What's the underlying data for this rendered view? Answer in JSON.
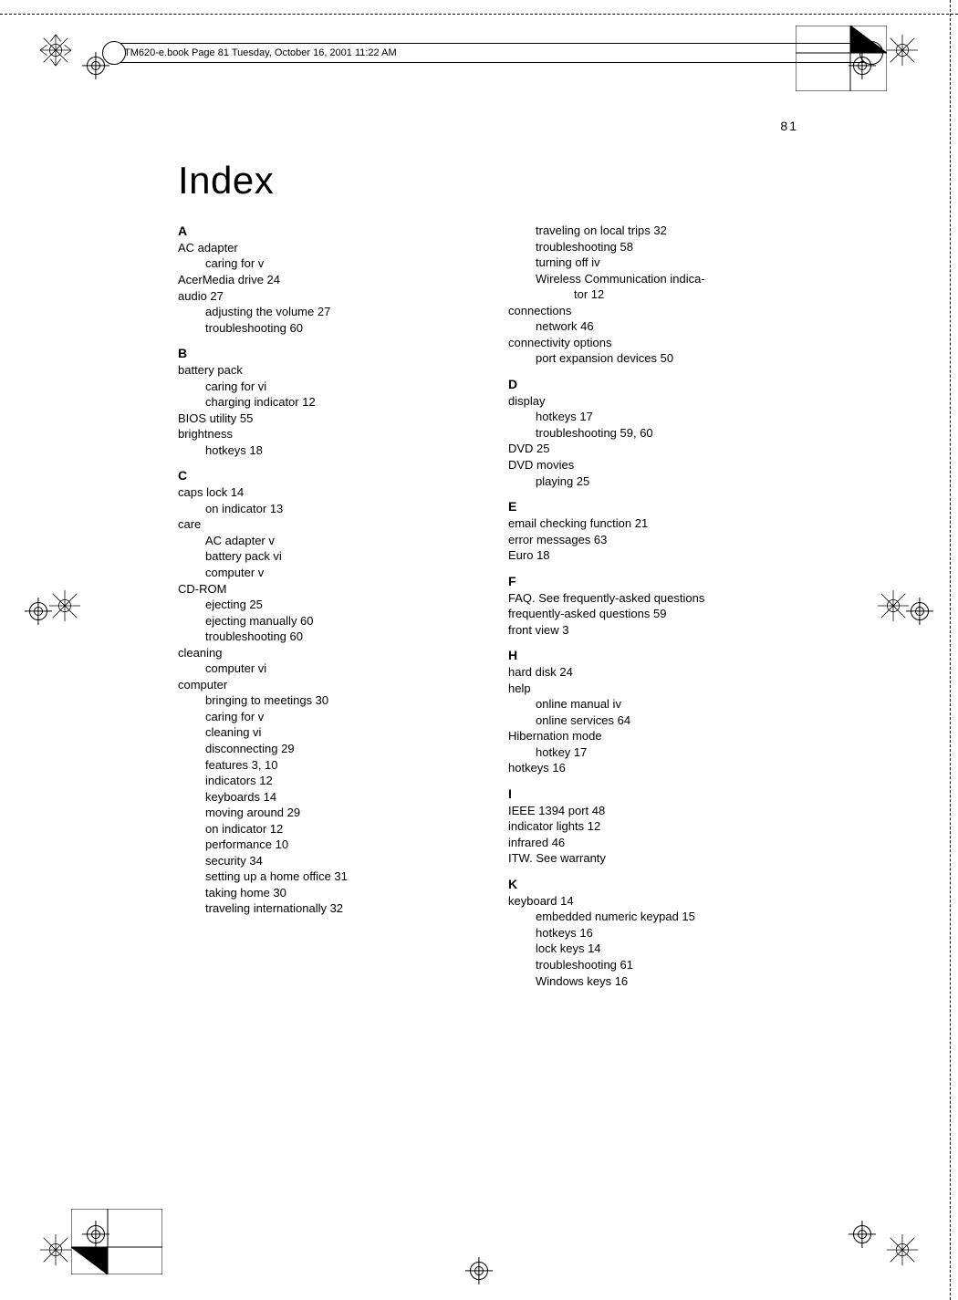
{
  "header": {
    "text": "TM620-e.book  Page 81  Tuesday, October 16, 2001  11:22 AM"
  },
  "page_number": "81",
  "title": "Index",
  "left_column": [
    {
      "type": "letter",
      "text": "A"
    },
    {
      "type": "entry",
      "text": "AC adapter"
    },
    {
      "type": "sub",
      "text": "caring for    v"
    },
    {
      "type": "entry",
      "text": "AcerMedia drive    24"
    },
    {
      "type": "entry",
      "text": "audio    27"
    },
    {
      "type": "sub",
      "text": "adjusting the volume    27"
    },
    {
      "type": "sub",
      "text": "troubleshooting    60"
    },
    {
      "type": "letter",
      "text": "B"
    },
    {
      "type": "entry",
      "text": "battery pack"
    },
    {
      "type": "sub",
      "text": "caring for    vi"
    },
    {
      "type": "sub",
      "text": "charging indicator    12"
    },
    {
      "type": "entry",
      "text": "BIOS utility    55"
    },
    {
      "type": "entry",
      "text": "brightness"
    },
    {
      "type": "sub",
      "text": "hotkeys    18"
    },
    {
      "type": "letter",
      "text": "C"
    },
    {
      "type": "entry",
      "text": "caps lock    14"
    },
    {
      "type": "sub",
      "text": "on indicator    13"
    },
    {
      "type": "entry",
      "text": "care"
    },
    {
      "type": "sub",
      "text": "AC adapter    v"
    },
    {
      "type": "sub",
      "text": "battery pack    vi"
    },
    {
      "type": "sub",
      "text": "computer    v"
    },
    {
      "type": "entry",
      "text": "CD-ROM"
    },
    {
      "type": "sub",
      "text": "ejecting    25"
    },
    {
      "type": "sub",
      "text": "ejecting manually    60"
    },
    {
      "type": "sub",
      "text": "troubleshooting    60"
    },
    {
      "type": "entry",
      "text": "cleaning"
    },
    {
      "type": "sub",
      "text": "computer    vi"
    },
    {
      "type": "entry",
      "text": "computer"
    },
    {
      "type": "sub",
      "text": "bringing to meetings    30"
    },
    {
      "type": "sub",
      "text": "caring for    v"
    },
    {
      "type": "sub",
      "text": "cleaning    vi"
    },
    {
      "type": "sub",
      "text": "disconnecting    29"
    },
    {
      "type": "sub",
      "text": "features    3,    10"
    },
    {
      "type": "sub",
      "text": "indicators    12"
    },
    {
      "type": "sub",
      "text": "keyboards    14"
    },
    {
      "type": "sub",
      "text": "moving around    29"
    },
    {
      "type": "sub",
      "text": "on indicator    12"
    },
    {
      "type": "sub",
      "text": "performance    10"
    },
    {
      "type": "sub",
      "text": "security    34"
    },
    {
      "type": "sub",
      "text": "setting up a home office    31"
    },
    {
      "type": "sub",
      "text": "taking home    30"
    },
    {
      "type": "sub",
      "text": "traveling internationally    32"
    }
  ],
  "right_column": [
    {
      "type": "sub",
      "text": "traveling on local trips    32"
    },
    {
      "type": "sub",
      "text": "troubleshooting    58"
    },
    {
      "type": "sub",
      "text": "turning off    iv"
    },
    {
      "type": "sub",
      "text": "Wireless  Communication  indica-"
    },
    {
      "type": "sub2",
      "text": "tor    12"
    },
    {
      "type": "entry",
      "text": "connections"
    },
    {
      "type": "sub",
      "text": "network    46"
    },
    {
      "type": "entry",
      "text": "connectivity options"
    },
    {
      "type": "sub",
      "text": "port expansion devices    50"
    },
    {
      "type": "letter",
      "text": "D"
    },
    {
      "type": "entry",
      "text": "display"
    },
    {
      "type": "sub",
      "text": "hotkeys    17"
    },
    {
      "type": "sub",
      "text": "troubleshooting    59,    60"
    },
    {
      "type": "entry",
      "text": "DVD    25"
    },
    {
      "type": "entry",
      "text": "DVD movies"
    },
    {
      "type": "sub",
      "text": "playing    25"
    },
    {
      "type": "letter",
      "text": "E"
    },
    {
      "type": "entry",
      "text": "email checking function    21"
    },
    {
      "type": "entry",
      "text": "error messages    63"
    },
    {
      "type": "entry",
      "text": "Euro    18"
    },
    {
      "type": "letter",
      "text": "F"
    },
    {
      "type": "entry",
      "text": "FAQ. See frequently-asked questions"
    },
    {
      "type": "entry",
      "text": "frequently-asked questions    59"
    },
    {
      "type": "entry",
      "text": "front view    3"
    },
    {
      "type": "letter",
      "text": "H"
    },
    {
      "type": "entry",
      "text": "hard disk    24"
    },
    {
      "type": "entry",
      "text": "help"
    },
    {
      "type": "sub",
      "text": "online manual    iv"
    },
    {
      "type": "sub",
      "text": "online services    64"
    },
    {
      "type": "entry",
      "text": "Hibernation mode"
    },
    {
      "type": "sub",
      "text": "hotkey    17"
    },
    {
      "type": "entry",
      "text": "hotkeys    16"
    },
    {
      "type": "letter",
      "text": "I"
    },
    {
      "type": "entry",
      "text": "IEEE 1394 port    48"
    },
    {
      "type": "entry",
      "text": "indicator lights    12"
    },
    {
      "type": "entry",
      "text": "infrared    46"
    },
    {
      "type": "entry",
      "text": "ITW. See warranty"
    },
    {
      "type": "letter",
      "text": "K"
    },
    {
      "type": "entry",
      "text": "keyboard    14"
    },
    {
      "type": "sub",
      "text": "embedded numeric keypad    15"
    },
    {
      "type": "sub",
      "text": "hotkeys    16"
    },
    {
      "type": "sub",
      "text": "lock keys    14"
    },
    {
      "type": "sub",
      "text": "troubleshooting    61"
    },
    {
      "type": "sub",
      "text": "Windows keys    16"
    }
  ],
  "colors": {
    "page_bg": "#ffffff",
    "text": "#000000"
  }
}
